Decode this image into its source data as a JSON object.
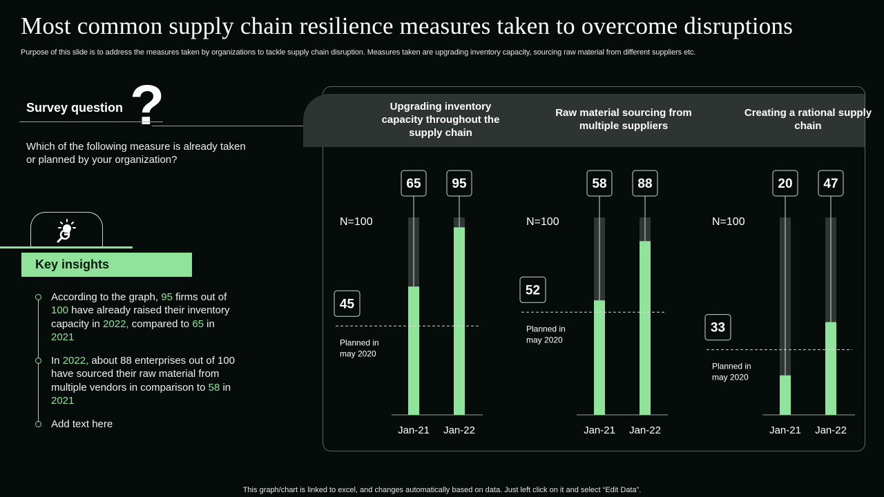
{
  "title": "Most common supply chain resilience measures taken to overcome disruptions",
  "subtitle": "Purpose of this slide is to address the measures taken by organizations to tackle supply chain disruption. Measures taken are upgrading inventory capacity, sourcing raw material from different suppliers etc.",
  "survey": {
    "label": "Survey question",
    "question": "Which of the following measure is already taken or planned by your organization?"
  },
  "insights": {
    "label": "Key insights",
    "bullets": [
      [
        "According to the graph, ",
        "95",
        " firms out of ",
        "100",
        " have already raised their inventory  capacity in ",
        "2022,",
        " compared to ",
        "65",
        " in ",
        "2021"
      ],
      [
        "In ",
        "2022,",
        " about 88 enterprises out of 100 have sourced their raw material from multiple  vendors  in comparison to ",
        "58",
        " in ",
        "2021"
      ],
      [
        "Add text here"
      ]
    ]
  },
  "footer": "This graph/chart is linked to excel,  and changes automatically based on data. Just left click on it and select “Edit Data”.",
  "colors": {
    "accent": "#8fe39a",
    "track": "#2f3633",
    "band": "#2d3431"
  },
  "chart_data": [
    {
      "type": "bar",
      "title": "Upgrading inventory capacity throughout the supply chain",
      "categories": [
        "Jan-21",
        "Jan-22"
      ],
      "values": [
        65,
        95
      ],
      "ylim": [
        0,
        100
      ],
      "n_label": "N=100",
      "planned_value": 45,
      "planned_label": "Planned in may 2020"
    },
    {
      "type": "bar",
      "title": "Raw material sourcing from multiple suppliers",
      "categories": [
        "Jan-21",
        "Jan-22"
      ],
      "values": [
        58,
        88
      ],
      "ylim": [
        0,
        100
      ],
      "n_label": "N=100",
      "planned_value": 52,
      "planned_label": "Planned in may 2020"
    },
    {
      "type": "bar",
      "title": "Creating a rational supply chain",
      "categories": [
        "Jan-21",
        "Jan-22"
      ],
      "values": [
        20,
        47
      ],
      "ylim": [
        0,
        100
      ],
      "n_label": "N=100",
      "planned_value": 33,
      "planned_label": "Planned in may 2020"
    }
  ]
}
